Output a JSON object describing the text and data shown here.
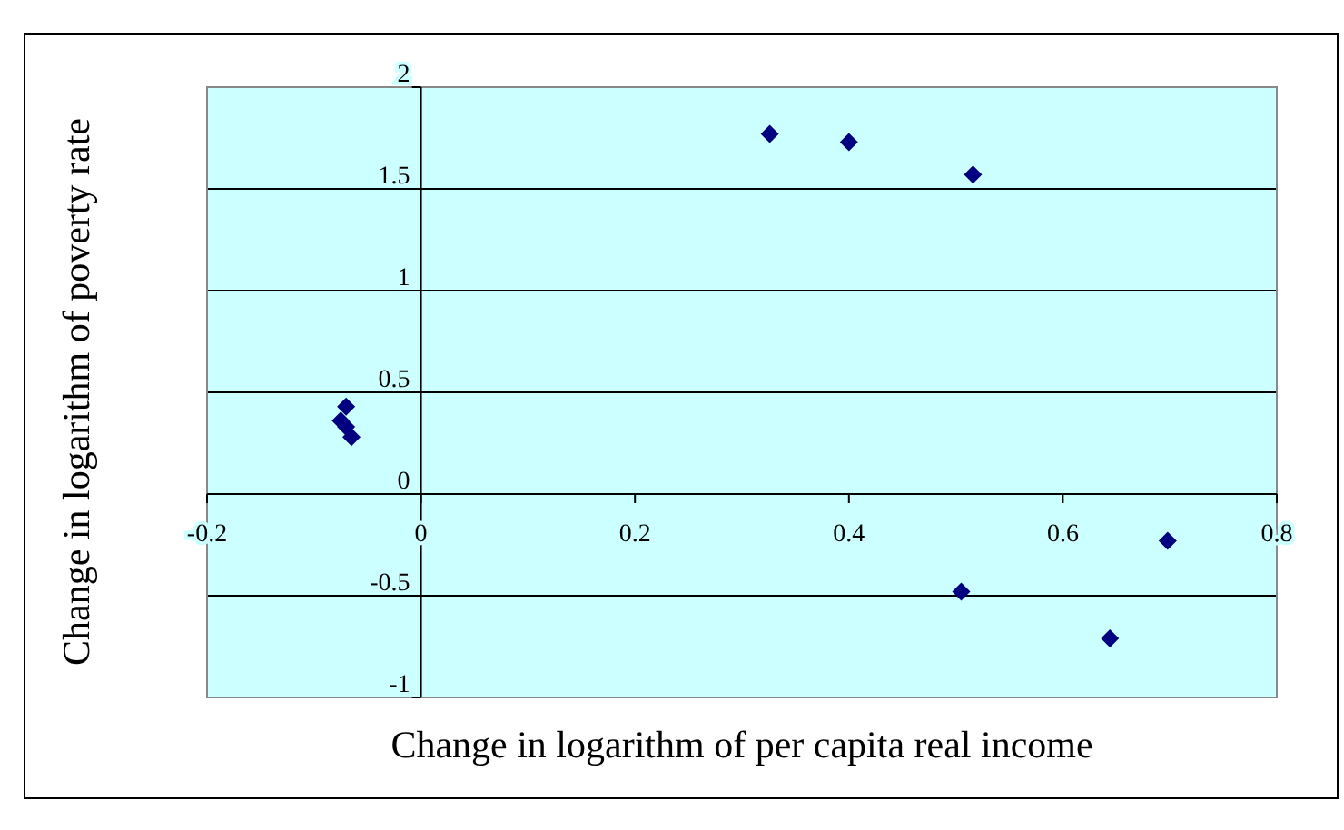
{
  "chart_data": {
    "type": "scatter",
    "xlabel": "Change in logarithm of per capita real income",
    "ylabel": "Change in logarithm of poverty rate",
    "x": [
      -0.07,
      -0.075,
      -0.07,
      -0.065,
      0.326,
      0.4,
      0.516,
      0.505,
      0.644,
      0.698
    ],
    "series": [
      {
        "color": "#000080",
        "values": [
          0.43,
          0.36,
          0.33,
          0.28,
          1.77,
          1.73,
          1.57,
          -0.48,
          -0.71,
          -0.23
        ]
      }
    ],
    "xlim": [
      -0.2,
      0.8
    ],
    "xticks": [
      -0.2,
      0,
      0.2,
      0.4,
      0.6,
      0.8
    ],
    "ylim": [
      -1,
      2
    ],
    "yticks": [
      -1,
      -0.5,
      0,
      0.5,
      1,
      1.5,
      2
    ],
    "grid": "y",
    "marker": "diamond",
    "legend": false
  }
}
